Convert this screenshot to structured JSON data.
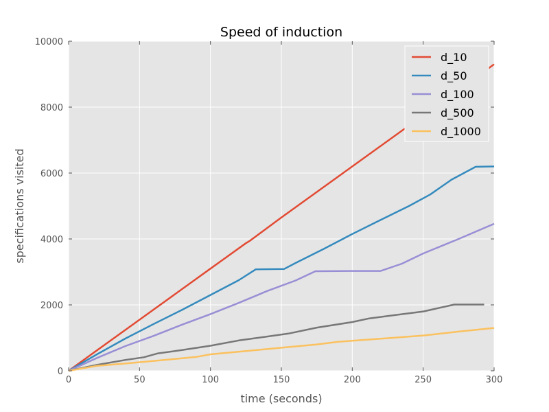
{
  "chart_data": {
    "type": "line",
    "title": "Speed of induction",
    "xlabel": "time (seconds)",
    "ylabel": "specifications visited",
    "xlim": [
      0,
      300
    ],
    "ylim": [
      0,
      10000
    ],
    "xticks": [
      0,
      50,
      100,
      150,
      200,
      250,
      300
    ],
    "yticks": [
      0,
      2000,
      4000,
      6000,
      8000,
      10000
    ],
    "grid": true,
    "legend_position": "top-right",
    "background_color": "#e5e5e5",
    "grid_color": "#ffffff",
    "series": [
      {
        "name": "d_10",
        "color": "#e24a33",
        "points": [
          [
            0,
            0
          ],
          [
            20,
            620
          ],
          [
            50,
            1550
          ],
          [
            100,
            3100
          ],
          [
            125,
            3870
          ],
          [
            128,
            3950
          ],
          [
            150,
            4650
          ],
          [
            200,
            6200
          ],
          [
            250,
            7750
          ],
          [
            300,
            9300
          ]
        ]
      },
      {
        "name": "d_50",
        "color": "#348abd",
        "points": [
          [
            0,
            0
          ],
          [
            20,
            500
          ],
          [
            40,
            980
          ],
          [
            60,
            1420
          ],
          [
            80,
            1850
          ],
          [
            100,
            2300
          ],
          [
            120,
            2750
          ],
          [
            132,
            3080
          ],
          [
            152,
            3090
          ],
          [
            160,
            3270
          ],
          [
            180,
            3700
          ],
          [
            200,
            4150
          ],
          [
            220,
            4580
          ],
          [
            240,
            5000
          ],
          [
            255,
            5350
          ],
          [
            270,
            5800
          ],
          [
            287,
            6190
          ],
          [
            300,
            6200
          ]
        ]
      },
      {
        "name": "d_100",
        "color": "#988ed5",
        "points": [
          [
            0,
            0
          ],
          [
            20,
            390
          ],
          [
            40,
            750
          ],
          [
            60,
            1060
          ],
          [
            80,
            1400
          ],
          [
            100,
            1720
          ],
          [
            120,
            2060
          ],
          [
            140,
            2420
          ],
          [
            160,
            2740
          ],
          [
            174,
            3020
          ],
          [
            200,
            3030
          ],
          [
            220,
            3030
          ],
          [
            235,
            3250
          ],
          [
            250,
            3560
          ],
          [
            275,
            4000
          ],
          [
            300,
            4460
          ]
        ]
      },
      {
        "name": "d_500",
        "color": "#777777",
        "points": [
          [
            0,
            0
          ],
          [
            20,
            180
          ],
          [
            40,
            330
          ],
          [
            53,
            410
          ],
          [
            63,
            530
          ],
          [
            80,
            630
          ],
          [
            100,
            760
          ],
          [
            120,
            920
          ],
          [
            140,
            1040
          ],
          [
            155,
            1130
          ],
          [
            175,
            1310
          ],
          [
            200,
            1480
          ],
          [
            212,
            1590
          ],
          [
            230,
            1690
          ],
          [
            250,
            1800
          ],
          [
            272,
            2010
          ],
          [
            293,
            2010
          ]
        ]
      },
      {
        "name": "d_1000",
        "color": "#fbc15e",
        "points": [
          [
            0,
            0
          ],
          [
            20,
            150
          ],
          [
            40,
            220
          ],
          [
            60,
            300
          ],
          [
            80,
            380
          ],
          [
            90,
            420
          ],
          [
            100,
            500
          ],
          [
            125,
            600
          ],
          [
            150,
            700
          ],
          [
            175,
            800
          ],
          [
            190,
            880
          ],
          [
            225,
            990
          ],
          [
            250,
            1070
          ],
          [
            275,
            1190
          ],
          [
            300,
            1300
          ]
        ]
      }
    ]
  }
}
